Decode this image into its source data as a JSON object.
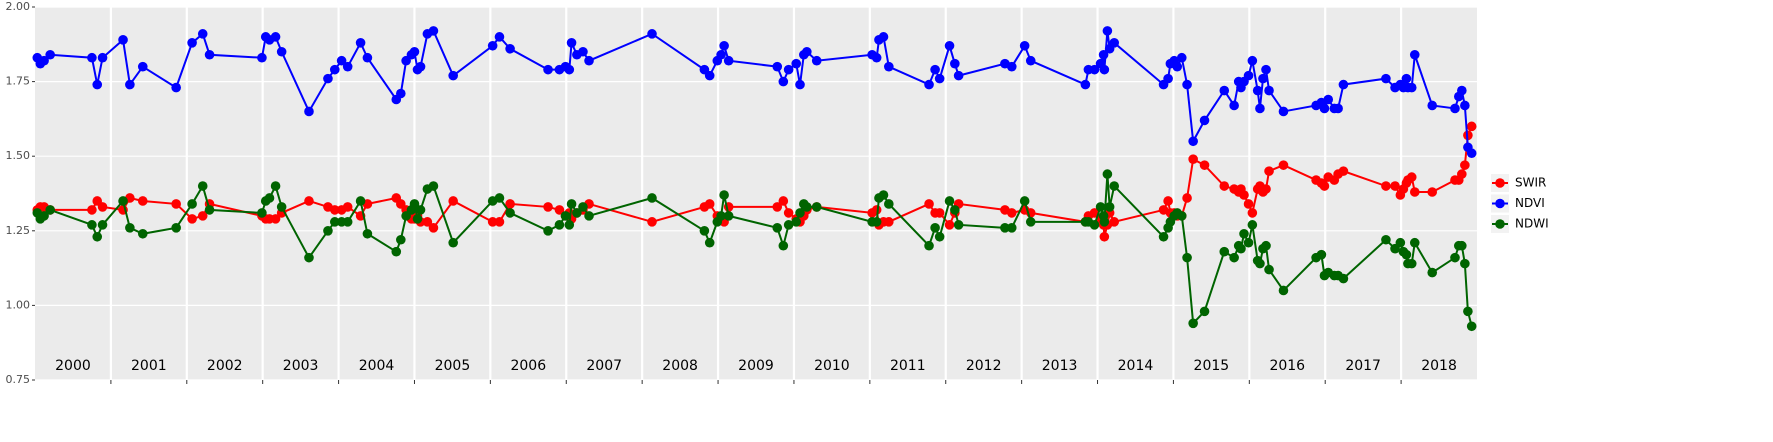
{
  "chart_data": {
    "type": "line",
    "x": [
      2000.03,
      2000.07,
      2000.12,
      2000.2,
      2000.75,
      2000.82,
      2000.89,
      2001.16,
      2001.25,
      2001.42,
      2001.86,
      2002.07,
      2002.21,
      2002.3,
      2002.99,
      2003.04,
      2003.09,
      2003.17,
      2003.25,
      2003.61,
      2003.86,
      2003.95,
      2004.04,
      2004.12,
      2004.29,
      2004.38,
      2004.76,
      2004.82,
      2004.89,
      2004.96,
      2005.0,
      2005.04,
      2005.08,
      2005.17,
      2005.25,
      2005.51,
      2006.03,
      2006.12,
      2006.26,
      2006.76,
      2006.91,
      2006.99,
      2007.04,
      2007.07,
      2007.14,
      2007.22,
      2007.3,
      2008.13,
      2008.82,
      2008.89,
      2008.99,
      2009.04,
      2009.08,
      2009.14,
      2009.78,
      2009.86,
      2009.93,
      2010.03,
      2010.08,
      2010.13,
      2010.17,
      2010.3,
      2011.03,
      2011.09,
      2011.12,
      2011.18,
      2011.25,
      2011.78,
      2011.86,
      2011.92,
      2012.05,
      2012.12,
      2012.17,
      2012.78,
      2012.87,
      2013.04,
      2013.12,
      2013.84,
      2013.88,
      2013.96,
      2014.04,
      2014.08,
      2014.09,
      2014.13,
      2014.16,
      2014.22,
      2014.87,
      2014.93,
      2014.96,
      2015.01,
      2015.05,
      2015.11,
      2015.18,
      2015.26,
      2015.41,
      2015.67,
      2015.8,
      2015.86,
      2015.89,
      2015.93,
      2015.99,
      2016.04,
      2016.11,
      2016.14,
      2016.18,
      2016.22,
      2016.26,
      2016.45,
      2016.88,
      2016.95,
      2016.99,
      2017.04,
      2017.12,
      2017.17,
      2017.24,
      2017.8,
      2017.92,
      2017.99,
      2018.03,
      2018.07,
      2018.09,
      2018.14,
      2018.18,
      2018.41,
      2018.71,
      2018.76,
      2018.8,
      2018.84,
      2018.88,
      2018.93
    ],
    "series": [
      {
        "name": "SWIR",
        "color": "#ff0000",
        "values": [
          1.32,
          1.33,
          1.33,
          1.32,
          1.32,
          1.35,
          1.33,
          1.32,
          1.36,
          1.35,
          1.34,
          1.29,
          1.3,
          1.34,
          1.3,
          1.29,
          1.29,
          1.29,
          1.31,
          1.35,
          1.33,
          1.32,
          1.32,
          1.33,
          1.3,
          1.34,
          1.36,
          1.34,
          1.32,
          1.29,
          1.29,
          1.3,
          1.28,
          1.28,
          1.26,
          1.35,
          1.28,
          1.28,
          1.34,
          1.33,
          1.32,
          1.3,
          1.31,
          1.29,
          1.31,
          1.32,
          1.34,
          1.28,
          1.33,
          1.34,
          1.3,
          1.29,
          1.28,
          1.33,
          1.33,
          1.35,
          1.31,
          1.29,
          1.28,
          1.3,
          1.32,
          1.33,
          1.31,
          1.32,
          1.27,
          1.28,
          1.28,
          1.34,
          1.31,
          1.31,
          1.27,
          1.31,
          1.34,
          1.32,
          1.31,
          1.32,
          1.31,
          1.28,
          1.3,
          1.31,
          1.29,
          1.27,
          1.23,
          1.27,
          1.31,
          1.28,
          1.32,
          1.35,
          1.31,
          1.31,
          1.3,
          1.3,
          1.36,
          1.49,
          1.47,
          1.4,
          1.39,
          1.38,
          1.39,
          1.37,
          1.34,
          1.31,
          1.39,
          1.4,
          1.38,
          1.39,
          1.45,
          1.47,
          1.42,
          1.41,
          1.4,
          1.43,
          1.42,
          1.44,
          1.45,
          1.4,
          1.4,
          1.37,
          1.39,
          1.41,
          1.42,
          1.43,
          1.38,
          1.38,
          1.42,
          1.42,
          1.44,
          1.47,
          1.57,
          1.6
        ]
      },
      {
        "name": "NDVI",
        "color": "#0000ff",
        "values": [
          1.83,
          1.81,
          1.82,
          1.84,
          1.83,
          1.74,
          1.83,
          1.89,
          1.74,
          1.8,
          1.73,
          1.88,
          1.91,
          1.84,
          1.83,
          1.9,
          1.89,
          1.9,
          1.85,
          1.65,
          1.76,
          1.79,
          1.82,
          1.8,
          1.88,
          1.83,
          1.69,
          1.71,
          1.82,
          1.84,
          1.85,
          1.79,
          1.8,
          1.91,
          1.92,
          1.77,
          1.87,
          1.9,
          1.86,
          1.79,
          1.79,
          1.8,
          1.79,
          1.88,
          1.84,
          1.85,
          1.82,
          1.91,
          1.79,
          1.77,
          1.82,
          1.84,
          1.87,
          1.82,
          1.8,
          1.75,
          1.79,
          1.81,
          1.74,
          1.84,
          1.85,
          1.82,
          1.84,
          1.83,
          1.89,
          1.9,
          1.8,
          1.74,
          1.79,
          1.76,
          1.87,
          1.81,
          1.77,
          1.81,
          1.8,
          1.87,
          1.82,
          1.74,
          1.79,
          1.79,
          1.81,
          1.84,
          1.79,
          1.92,
          1.86,
          1.88,
          1.74,
          1.76,
          1.81,
          1.82,
          1.8,
          1.83,
          1.74,
          1.55,
          1.62,
          1.72,
          1.67,
          1.75,
          1.73,
          1.75,
          1.77,
          1.82,
          1.72,
          1.66,
          1.76,
          1.79,
          1.72,
          1.65,
          1.67,
          1.68,
          1.66,
          1.69,
          1.66,
          1.66,
          1.74,
          1.76,
          1.73,
          1.74,
          1.73,
          1.76,
          1.73,
          1.73,
          1.84,
          1.67,
          1.66,
          1.7,
          1.72,
          1.67,
          1.53,
          1.51
        ]
      },
      {
        "name": "NDWI",
        "color": "#006400",
        "values": [
          1.31,
          1.29,
          1.3,
          1.32,
          1.27,
          1.23,
          1.27,
          1.35,
          1.26,
          1.24,
          1.26,
          1.34,
          1.4,
          1.32,
          1.31,
          1.35,
          1.36,
          1.4,
          1.33,
          1.16,
          1.25,
          1.28,
          1.28,
          1.28,
          1.35,
          1.24,
          1.18,
          1.22,
          1.3,
          1.32,
          1.34,
          1.29,
          1.32,
          1.39,
          1.4,
          1.21,
          1.35,
          1.36,
          1.31,
          1.25,
          1.27,
          1.3,
          1.27,
          1.34,
          1.31,
          1.33,
          1.3,
          1.36,
          1.25,
          1.21,
          1.28,
          1.3,
          1.37,
          1.3,
          1.26,
          1.2,
          1.27,
          1.28,
          1.31,
          1.34,
          1.33,
          1.33,
          1.28,
          1.28,
          1.36,
          1.37,
          1.34,
          1.2,
          1.26,
          1.23,
          1.35,
          1.32,
          1.27,
          1.26,
          1.26,
          1.35,
          1.28,
          1.28,
          1.28,
          1.27,
          1.33,
          1.3,
          1.28,
          1.44,
          1.33,
          1.4,
          1.23,
          1.26,
          1.28,
          1.3,
          1.31,
          1.3,
          1.16,
          0.94,
          0.98,
          1.18,
          1.16,
          1.2,
          1.19,
          1.24,
          1.21,
          1.27,
          1.15,
          1.14,
          1.19,
          1.2,
          1.12,
          1.05,
          1.16,
          1.17,
          1.1,
          1.11,
          1.1,
          1.1,
          1.09,
          1.22,
          1.19,
          1.21,
          1.18,
          1.17,
          1.14,
          1.14,
          1.21,
          1.11,
          1.16,
          1.2,
          1.2,
          1.14,
          0.98,
          0.93
        ]
      }
    ],
    "year_labels": [
      "2000",
      "2001",
      "2002",
      "2003",
      "2004",
      "2005",
      "2006",
      "2007",
      "2008",
      "2009",
      "2010",
      "2011",
      "2012",
      "2013",
      "2014",
      "2015",
      "2016",
      "2017",
      "2018"
    ],
    "xlim": [
      2000,
      2019
    ],
    "xticks": [
      2001,
      2002,
      2003,
      2004,
      2005,
      2006,
      2007,
      2008,
      2009,
      2010,
      2011,
      2012,
      2013,
      2014,
      2015,
      2016,
      2017,
      2018
    ],
    "ylim": [
      0.75,
      2.0
    ],
    "yticks": [
      {
        "value": 0.75,
        "label": "0.75"
      },
      {
        "value": 1.0,
        "label": "1.00"
      },
      {
        "value": 1.25,
        "label": "1.25"
      },
      {
        "value": 1.5,
        "label": "1.50"
      },
      {
        "value": 1.75,
        "label": "1.75"
      },
      {
        "value": 2.0,
        "label": "2.00"
      }
    ],
    "grid": true,
    "legend": "right"
  }
}
